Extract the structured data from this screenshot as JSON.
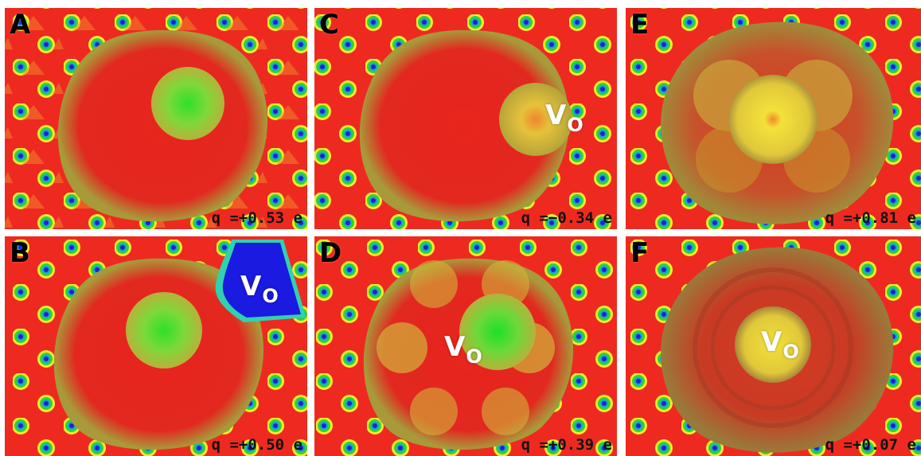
{
  "panels": [
    {
      "id": "A",
      "label": "A",
      "charge": "q =+0.53 e",
      "vo": null
    },
    {
      "id": "B",
      "label": "B",
      "charge": "q =+0.50 e",
      "vo": {
        "main": "V",
        "sub": "O"
      }
    },
    {
      "id": "C",
      "label": "C",
      "charge": "q =−0.34 e",
      "vo": {
        "main": "V",
        "sub": "O"
      }
    },
    {
      "id": "D",
      "label": "D",
      "charge": "q =+0.39 e",
      "vo": {
        "main": "V",
        "sub": "O"
      }
    },
    {
      "id": "E",
      "label": "E",
      "charge": "q =+0.81 e",
      "vo": null
    },
    {
      "id": "F",
      "label": "F",
      "charge": "q =+0.07 e",
      "vo": {
        "main": "V",
        "sub": "O"
      }
    }
  ],
  "colors": {
    "background_red": "#ee2a20",
    "adatom_green": "#5bd33a",
    "adatom_yellow": "#f0e43a",
    "vacancy_blue": "#1a1ae0",
    "label_black": "#000000",
    "vo_white": "#ffffff"
  }
}
